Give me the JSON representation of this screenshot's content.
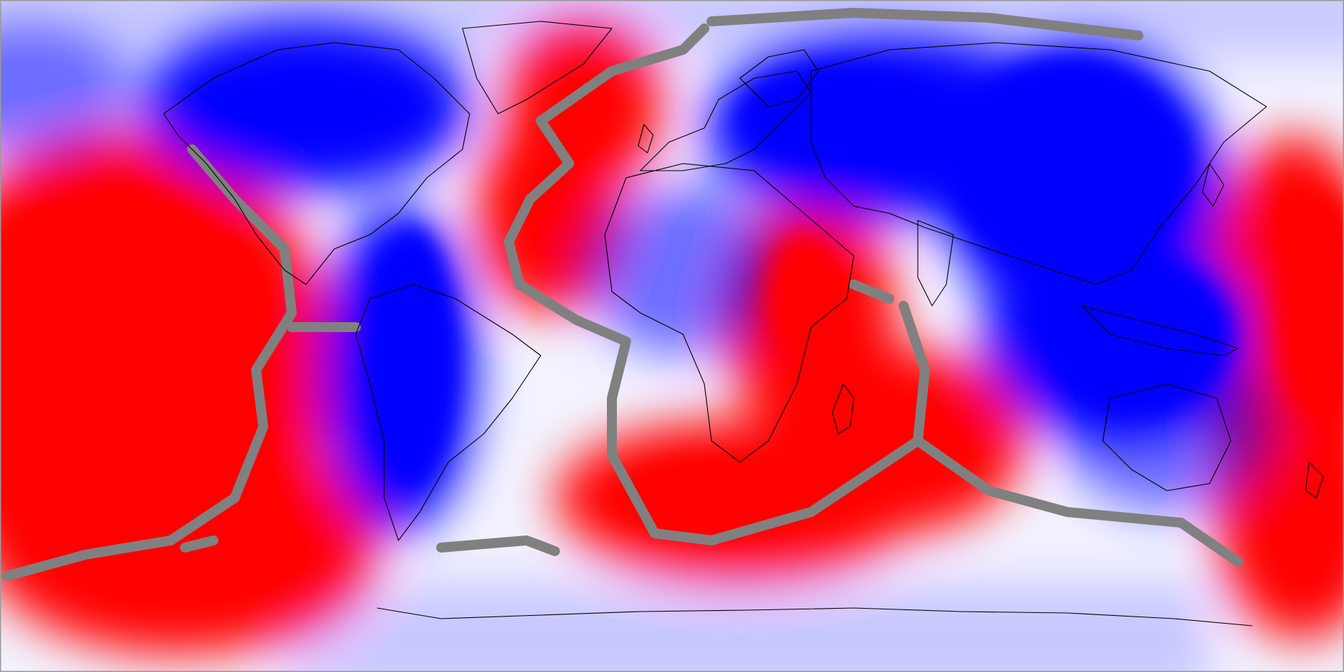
{
  "map": {
    "projection": "equirectangular",
    "colormap": {
      "positive": "#ff0000",
      "negative": "#0000ff",
      "neutral": "#ffffff",
      "ridge": "#808080",
      "coastline": "#000000",
      "border": "#9a9a9a"
    },
    "layers": [
      "anomaly-field",
      "plate-boundaries",
      "coastlines"
    ]
  }
}
